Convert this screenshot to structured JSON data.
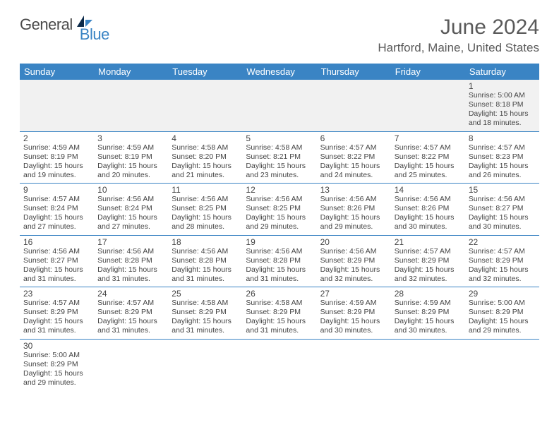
{
  "brand": {
    "part1": "General",
    "part2": "Blue"
  },
  "title": "June 2024",
  "location": "Hartford, Maine, United States",
  "header_bg": "#3a84c4",
  "rule_color": "#3a84c4",
  "alt_row_bg": "#f1f1f1",
  "text_color": "#444444",
  "days": [
    "Sunday",
    "Monday",
    "Tuesday",
    "Wednesday",
    "Thursday",
    "Friday",
    "Saturday"
  ],
  "weeks": [
    [
      {
        "n": ""
      },
      {
        "n": ""
      },
      {
        "n": ""
      },
      {
        "n": ""
      },
      {
        "n": ""
      },
      {
        "n": ""
      },
      {
        "n": "1",
        "sr": "Sunrise: 5:00 AM",
        "ss": "Sunset: 8:18 PM",
        "d1": "Daylight: 15 hours",
        "d2": "and 18 minutes."
      }
    ],
    [
      {
        "n": "2",
        "sr": "Sunrise: 4:59 AM",
        "ss": "Sunset: 8:19 PM",
        "d1": "Daylight: 15 hours",
        "d2": "and 19 minutes."
      },
      {
        "n": "3",
        "sr": "Sunrise: 4:59 AM",
        "ss": "Sunset: 8:19 PM",
        "d1": "Daylight: 15 hours",
        "d2": "and 20 minutes."
      },
      {
        "n": "4",
        "sr": "Sunrise: 4:58 AM",
        "ss": "Sunset: 8:20 PM",
        "d1": "Daylight: 15 hours",
        "d2": "and 21 minutes."
      },
      {
        "n": "5",
        "sr": "Sunrise: 4:58 AM",
        "ss": "Sunset: 8:21 PM",
        "d1": "Daylight: 15 hours",
        "d2": "and 23 minutes."
      },
      {
        "n": "6",
        "sr": "Sunrise: 4:57 AM",
        "ss": "Sunset: 8:22 PM",
        "d1": "Daylight: 15 hours",
        "d2": "and 24 minutes."
      },
      {
        "n": "7",
        "sr": "Sunrise: 4:57 AM",
        "ss": "Sunset: 8:22 PM",
        "d1": "Daylight: 15 hours",
        "d2": "and 25 minutes."
      },
      {
        "n": "8",
        "sr": "Sunrise: 4:57 AM",
        "ss": "Sunset: 8:23 PM",
        "d1": "Daylight: 15 hours",
        "d2": "and 26 minutes."
      }
    ],
    [
      {
        "n": "9",
        "sr": "Sunrise: 4:57 AM",
        "ss": "Sunset: 8:24 PM",
        "d1": "Daylight: 15 hours",
        "d2": "and 27 minutes."
      },
      {
        "n": "10",
        "sr": "Sunrise: 4:56 AM",
        "ss": "Sunset: 8:24 PM",
        "d1": "Daylight: 15 hours",
        "d2": "and 27 minutes."
      },
      {
        "n": "11",
        "sr": "Sunrise: 4:56 AM",
        "ss": "Sunset: 8:25 PM",
        "d1": "Daylight: 15 hours",
        "d2": "and 28 minutes."
      },
      {
        "n": "12",
        "sr": "Sunrise: 4:56 AM",
        "ss": "Sunset: 8:25 PM",
        "d1": "Daylight: 15 hours",
        "d2": "and 29 minutes."
      },
      {
        "n": "13",
        "sr": "Sunrise: 4:56 AM",
        "ss": "Sunset: 8:26 PM",
        "d1": "Daylight: 15 hours",
        "d2": "and 29 minutes."
      },
      {
        "n": "14",
        "sr": "Sunrise: 4:56 AM",
        "ss": "Sunset: 8:26 PM",
        "d1": "Daylight: 15 hours",
        "d2": "and 30 minutes."
      },
      {
        "n": "15",
        "sr": "Sunrise: 4:56 AM",
        "ss": "Sunset: 8:27 PM",
        "d1": "Daylight: 15 hours",
        "d2": "and 30 minutes."
      }
    ],
    [
      {
        "n": "16",
        "sr": "Sunrise: 4:56 AM",
        "ss": "Sunset: 8:27 PM",
        "d1": "Daylight: 15 hours",
        "d2": "and 31 minutes."
      },
      {
        "n": "17",
        "sr": "Sunrise: 4:56 AM",
        "ss": "Sunset: 8:28 PM",
        "d1": "Daylight: 15 hours",
        "d2": "and 31 minutes."
      },
      {
        "n": "18",
        "sr": "Sunrise: 4:56 AM",
        "ss": "Sunset: 8:28 PM",
        "d1": "Daylight: 15 hours",
        "d2": "and 31 minutes."
      },
      {
        "n": "19",
        "sr": "Sunrise: 4:56 AM",
        "ss": "Sunset: 8:28 PM",
        "d1": "Daylight: 15 hours",
        "d2": "and 31 minutes."
      },
      {
        "n": "20",
        "sr": "Sunrise: 4:56 AM",
        "ss": "Sunset: 8:29 PM",
        "d1": "Daylight: 15 hours",
        "d2": "and 32 minutes."
      },
      {
        "n": "21",
        "sr": "Sunrise: 4:57 AM",
        "ss": "Sunset: 8:29 PM",
        "d1": "Daylight: 15 hours",
        "d2": "and 32 minutes."
      },
      {
        "n": "22",
        "sr": "Sunrise: 4:57 AM",
        "ss": "Sunset: 8:29 PM",
        "d1": "Daylight: 15 hours",
        "d2": "and 32 minutes."
      }
    ],
    [
      {
        "n": "23",
        "sr": "Sunrise: 4:57 AM",
        "ss": "Sunset: 8:29 PM",
        "d1": "Daylight: 15 hours",
        "d2": "and 31 minutes."
      },
      {
        "n": "24",
        "sr": "Sunrise: 4:57 AM",
        "ss": "Sunset: 8:29 PM",
        "d1": "Daylight: 15 hours",
        "d2": "and 31 minutes."
      },
      {
        "n": "25",
        "sr": "Sunrise: 4:58 AM",
        "ss": "Sunset: 8:29 PM",
        "d1": "Daylight: 15 hours",
        "d2": "and 31 minutes."
      },
      {
        "n": "26",
        "sr": "Sunrise: 4:58 AM",
        "ss": "Sunset: 8:29 PM",
        "d1": "Daylight: 15 hours",
        "d2": "and 31 minutes."
      },
      {
        "n": "27",
        "sr": "Sunrise: 4:59 AM",
        "ss": "Sunset: 8:29 PM",
        "d1": "Daylight: 15 hours",
        "d2": "and 30 minutes."
      },
      {
        "n": "28",
        "sr": "Sunrise: 4:59 AM",
        "ss": "Sunset: 8:29 PM",
        "d1": "Daylight: 15 hours",
        "d2": "and 30 minutes."
      },
      {
        "n": "29",
        "sr": "Sunrise: 5:00 AM",
        "ss": "Sunset: 8:29 PM",
        "d1": "Daylight: 15 hours",
        "d2": "and 29 minutes."
      }
    ],
    [
      {
        "n": "30",
        "sr": "Sunrise: 5:00 AM",
        "ss": "Sunset: 8:29 PM",
        "d1": "Daylight: 15 hours",
        "d2": "and 29 minutes."
      },
      {
        "n": ""
      },
      {
        "n": ""
      },
      {
        "n": ""
      },
      {
        "n": ""
      },
      {
        "n": ""
      },
      {
        "n": ""
      }
    ]
  ]
}
